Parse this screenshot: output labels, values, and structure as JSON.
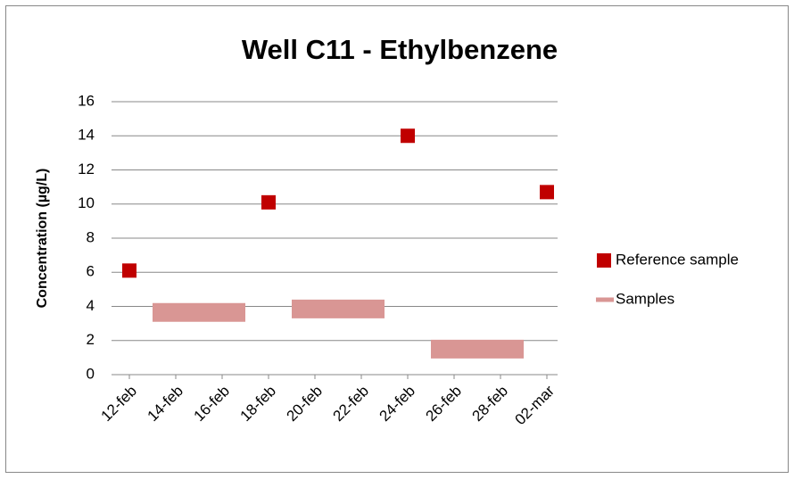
{
  "chart_data": {
    "type": "scatter",
    "title": "Well C11 - Ethylbenzene",
    "y_label": "Concentration (µg/L)",
    "xticks": [
      "12-feb",
      "14-feb",
      "16-feb",
      "18-feb",
      "20-feb",
      "22-feb",
      "24-feb",
      "26-feb",
      "28-feb",
      "02-mar"
    ],
    "xlim": [
      "12-feb",
      "02-mar"
    ],
    "ylim": [
      0,
      16
    ],
    "yticks": [
      0,
      2,
      4,
      6,
      8,
      10,
      12,
      14,
      16
    ],
    "grid": true,
    "legend": "right",
    "series": [
      {
        "name": "Reference sample",
        "type": "scatter",
        "color": "#c00000",
        "x": [
          "12-feb",
          "18-feb",
          "24-feb",
          "02-mar"
        ],
        "values": [
          6.1,
          10.1,
          14.0,
          10.7
        ]
      },
      {
        "name": "Samples",
        "type": "line",
        "color": "#d99694",
        "x": [
          "13-feb",
          "17-feb",
          null,
          "19-feb",
          "23-feb",
          null,
          "25-feb",
          "01-mar"
        ],
        "values": [
          3.65,
          3.65,
          null,
          3.85,
          3.85,
          null,
          1.5,
          1.5
        ]
      }
    ]
  }
}
